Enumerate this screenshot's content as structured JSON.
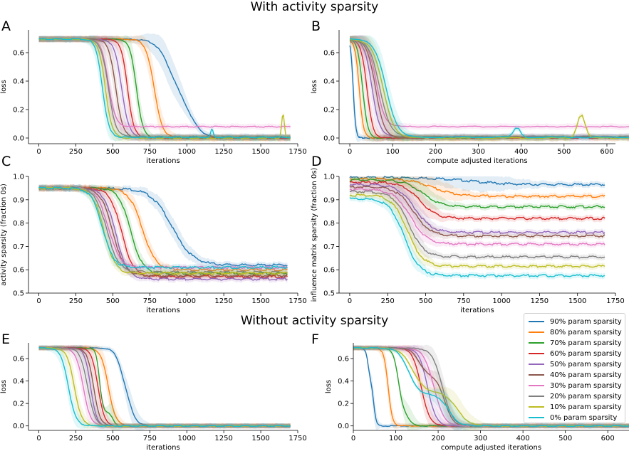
{
  "titles": {
    "top": "With activity sparsity",
    "bottom": "Without activity sparsity"
  },
  "legend": [
    {
      "label": "90% param sparsity",
      "color": "#1f77b4"
    },
    {
      "label": "80% param sparsity",
      "color": "#ff7f0e"
    },
    {
      "label": "70% param sparsity",
      "color": "#2ca02c"
    },
    {
      "label": "60% param sparsity",
      "color": "#d62728"
    },
    {
      "label": "50% param sparsity",
      "color": "#9467bd"
    },
    {
      "label": "40% param sparsity",
      "color": "#8c564b"
    },
    {
      "label": "30% param sparsity",
      "color": "#e377c2"
    },
    {
      "label": "20% param sparsity",
      "color": "#7f7f7f"
    },
    {
      "label": "10% param sparsity",
      "color": "#bcbd22"
    },
    {
      "label": "0% param sparsity",
      "color": "#17becf"
    }
  ],
  "chart_data": [
    {
      "panel": "A",
      "type": "line",
      "xlabel": "iterations",
      "ylabel": "loss",
      "xlim": [
        -70,
        1750
      ],
      "ylim": [
        -0.04,
        0.76
      ],
      "xticks": [
        0,
        250,
        500,
        750,
        1000,
        1250,
        1500,
        1750
      ],
      "yticks": [
        0.0,
        0.2,
        0.4,
        0.6
      ],
      "curve": "loss",
      "x_end": 1700,
      "series": [
        {
          "name": "90% param sparsity",
          "t": 880,
          "w": 45,
          "tail": 0.0,
          "t2": 1020,
          "mid": 0.38
        },
        {
          "name": "80% param sparsity",
          "t": 780,
          "w": 28,
          "tail": 0.0
        },
        {
          "name": "70% param sparsity",
          "t": 660,
          "w": 22,
          "tail": 0.0
        },
        {
          "name": "60% param sparsity",
          "t": 600,
          "w": 22,
          "tail": 0.0
        },
        {
          "name": "50% param sparsity",
          "t": 560,
          "w": 25,
          "tail": 0.005
        },
        {
          "name": "40% param sparsity",
          "t": 520,
          "w": 24,
          "tail": 0.005
        },
        {
          "name": "30% param sparsity",
          "t": 470,
          "w": 24,
          "tail": 0.08
        },
        {
          "name": "20% param sparsity",
          "t": 470,
          "w": 25,
          "tail": 0.01
        },
        {
          "name": "10% param sparsity",
          "t": 450,
          "w": 23,
          "tail": 0.0,
          "spike": [
            1650,
            0.17
          ]
        },
        {
          "name": "0% param sparsity",
          "t": 430,
          "w": 22,
          "tail": 0.005,
          "spike2": [
            1170,
            0.06
          ]
        }
      ]
    },
    {
      "panel": "B",
      "type": "line",
      "xlabel": "compute adjusted iterations",
      "ylabel": "loss",
      "xlim": [
        -25,
        620
      ],
      "ylim": [
        -0.04,
        0.76
      ],
      "xticks": [
        0,
        100,
        200,
        300,
        400,
        500,
        600
      ],
      "yticks": [
        0.0,
        0.2,
        0.4,
        0.6
      ],
      "curve": "loss",
      "series": [
        {
          "name": "90% param sparsity",
          "t": 8,
          "w": 3,
          "tail": 0.0,
          "x_end": 170
        },
        {
          "name": "80% param sparsity",
          "t": 22,
          "w": 5,
          "tail": 0.0,
          "x_end": 340
        },
        {
          "name": "70% param sparsity",
          "t": 30,
          "w": 6,
          "tail": 0.0,
          "x_end": 510
        },
        {
          "name": "60% param sparsity",
          "t": 40,
          "w": 7,
          "tail": 0.0,
          "x_end": 680
        },
        {
          "name": "50% param sparsity",
          "t": 52,
          "w": 9,
          "tail": 0.01,
          "x_end": 850
        },
        {
          "name": "40% param sparsity",
          "t": 60,
          "w": 10,
          "tail": 0.005,
          "x_end": 1020
        },
        {
          "name": "30% param sparsity",
          "t": 62,
          "w": 10,
          "tail": 0.08,
          "x_end": 1190
        },
        {
          "name": "20% param sparsity",
          "t": 70,
          "w": 12,
          "tail": 0.01,
          "x_end": 1360
        },
        {
          "name": "10% param sparsity",
          "t": 78,
          "w": 13,
          "tail": 0.0,
          "x_end": 1530,
          "spike": [
            540,
            0.17
          ]
        },
        {
          "name": "0% param sparsity",
          "t": 85,
          "w": 13,
          "tail": 0.005,
          "x_end": 1700,
          "spike2": [
            390,
            0.07
          ]
        }
      ]
    },
    {
      "panel": "C",
      "type": "line",
      "xlabel": "iterations",
      "ylabel": "activity sparsity (fraction 0s)",
      "xlim": [
        -70,
        1750
      ],
      "ylim": [
        0.5,
        1.0
      ],
      "xticks": [
        0,
        250,
        500,
        750,
        1000,
        1250,
        1500,
        1750
      ],
      "yticks": [
        0.5,
        0.6,
        0.7,
        0.8,
        0.9,
        1.0
      ],
      "curve": "sigmoid",
      "x_end": 1680,
      "series": [
        {
          "name": "90% param sparsity",
          "start": 0.95,
          "end": 0.62,
          "t": 900,
          "w": 70
        },
        {
          "name": "80% param sparsity",
          "start": 0.95,
          "end": 0.6,
          "t": 700,
          "w": 45
        },
        {
          "name": "70% param sparsity",
          "start": 0.95,
          "end": 0.585,
          "t": 620,
          "w": 40
        },
        {
          "name": "60% param sparsity",
          "start": 0.95,
          "end": 0.57,
          "t": 560,
          "w": 40
        },
        {
          "name": "50% param sparsity",
          "start": 0.95,
          "end": 0.56,
          "t": 520,
          "w": 40
        },
        {
          "name": "40% param sparsity",
          "start": 0.95,
          "end": 0.575,
          "t": 500,
          "w": 40
        },
        {
          "name": "30% param sparsity",
          "start": 0.95,
          "end": 0.61,
          "t": 470,
          "w": 40
        },
        {
          "name": "20% param sparsity",
          "start": 0.95,
          "end": 0.59,
          "t": 460,
          "w": 40
        },
        {
          "name": "10% param sparsity",
          "start": 0.95,
          "end": 0.585,
          "t": 440,
          "w": 38
        },
        {
          "name": "0% param sparsity",
          "start": 0.95,
          "end": 0.61,
          "t": 430,
          "w": 38
        }
      ]
    },
    {
      "panel": "D",
      "type": "line",
      "xlabel": "iterations",
      "ylabel": "influence matrix sparsity (fraction 0s)",
      "xlim": [
        -70,
        1750
      ],
      "ylim": [
        0.5,
        1.0
      ],
      "xticks": [
        0,
        250,
        500,
        750,
        1000,
        1250,
        1500,
        1750
      ],
      "yticks": [
        0.5,
        0.6,
        0.7,
        0.8,
        0.9,
        1.0
      ],
      "curve": "sigmoid",
      "x_end": 1680,
      "series": [
        {
          "name": "90% param sparsity",
          "start": 0.995,
          "end": 0.965,
          "t": 800,
          "w": 120
        },
        {
          "name": "80% param sparsity",
          "start": 0.99,
          "end": 0.915,
          "t": 550,
          "w": 80
        },
        {
          "name": "70% param sparsity",
          "start": 0.985,
          "end": 0.87,
          "t": 480,
          "w": 60
        },
        {
          "name": "60% param sparsity",
          "start": 0.975,
          "end": 0.82,
          "t": 460,
          "w": 55
        },
        {
          "name": "50% param sparsity",
          "start": 0.965,
          "end": 0.76,
          "t": 430,
          "w": 55
        },
        {
          "name": "40% param sparsity",
          "start": 0.955,
          "end": 0.745,
          "t": 420,
          "w": 55
        },
        {
          "name": "30% param sparsity",
          "start": 0.945,
          "end": 0.71,
          "t": 400,
          "w": 55
        },
        {
          "name": "20% param sparsity",
          "start": 0.935,
          "end": 0.655,
          "t": 390,
          "w": 50
        },
        {
          "name": "10% param sparsity",
          "start": 0.92,
          "end": 0.615,
          "t": 380,
          "w": 50
        },
        {
          "name": "0% param sparsity",
          "start": 0.905,
          "end": 0.575,
          "t": 360,
          "w": 50
        }
      ]
    },
    {
      "panel": "E",
      "type": "line",
      "xlabel": "iterations",
      "ylabel": "loss",
      "xlim": [
        -70,
        1750
      ],
      "ylim": [
        -0.04,
        0.74
      ],
      "xticks": [
        0,
        250,
        500,
        750,
        1000,
        1250,
        1500,
        1750
      ],
      "yticks": [
        0.0,
        0.2,
        0.4,
        0.6
      ],
      "curve": "loss",
      "x_end": 1700,
      "series": [
        {
          "name": "90% param sparsity",
          "t": 620,
          "w": 25,
          "tail": 0.0,
          "t2": 560,
          "mid": 0.3
        },
        {
          "name": "80% param sparsity",
          "t": 470,
          "w": 25,
          "tail": 0.0
        },
        {
          "name": "70% param sparsity",
          "t": 500,
          "w": 12,
          "tail": 0.0,
          "t2": 410,
          "mid": 0.12
        },
        {
          "name": "60% param sparsity",
          "t": 400,
          "w": 22,
          "tail": 0.0
        },
        {
          "name": "50% param sparsity",
          "t": 350,
          "w": 20,
          "tail": 0.0
        },
        {
          "name": "40% param sparsity",
          "t": 370,
          "w": 22,
          "tail": 0.0
        },
        {
          "name": "30% param sparsity",
          "t": 300,
          "w": 25,
          "tail": 0.0
        },
        {
          "name": "20% param sparsity",
          "t": 330,
          "w": 25,
          "tail": 0.0
        },
        {
          "name": "10% param sparsity",
          "t": 240,
          "w": 25,
          "tail": 0.0
        },
        {
          "name": "0% param sparsity",
          "t": 200,
          "w": 25,
          "tail": 0.0
        }
      ]
    },
    {
      "panel": "F",
      "type": "line",
      "xlabel": "compute adjusted iterations",
      "ylabel": "loss",
      "xlim": [
        0,
        650
      ],
      "ylim": [
        -0.04,
        0.74
      ],
      "xticks": [
        0,
        100,
        200,
        300,
        400,
        500,
        600
      ],
      "yticks": [
        0.0,
        0.2,
        0.4,
        0.6
      ],
      "curve": "loss",
      "x_end": 650,
      "series": [
        {
          "name": "90% param sparsity",
          "t": 48,
          "w": 3,
          "tail": 0.0,
          "t2": 35,
          "mid": 0.4
        },
        {
          "name": "80% param sparsity",
          "t": 82,
          "w": 5,
          "tail": 0.0
        },
        {
          "name": "70% param sparsity",
          "t": 130,
          "w": 6,
          "tail": 0.0,
          "t2": 106,
          "mid": 0.12
        },
        {
          "name": "60% param sparsity",
          "t": 160,
          "w": 10,
          "tail": 0.0
        },
        {
          "name": "50% param sparsity",
          "t": 175,
          "w": 10,
          "tail": 0.0
        },
        {
          "name": "40% param sparsity",
          "t": 215,
          "w": 10,
          "tail": 0.0,
          "t2": 155,
          "mid": 0.45
        },
        {
          "name": "30% param sparsity",
          "t": 190,
          "w": 12,
          "tail": 0.0
        },
        {
          "name": "20% param sparsity",
          "t": 210,
          "w": 12,
          "tail": 0.0
        },
        {
          "name": "10% param sparsity",
          "t": 245,
          "w": 14,
          "tail": 0.0,
          "t2": 140,
          "mid": 0.3
        },
        {
          "name": "0% param sparsity",
          "t": 225,
          "w": 12,
          "tail": 0.0,
          "t2": 130,
          "mid": 0.28
        }
      ]
    }
  ]
}
